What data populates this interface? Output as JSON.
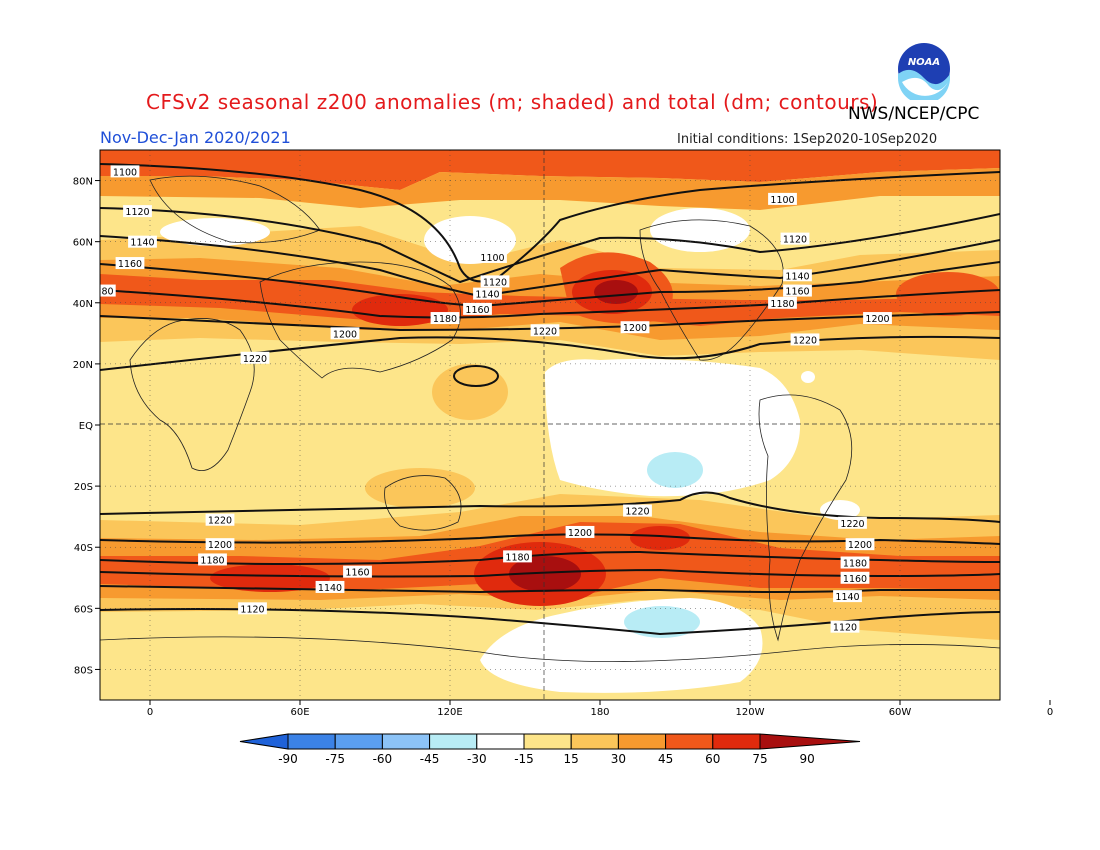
{
  "title": "CFSv2 seasonal z200 anomalies (m; shaded) and total (dm; contours)",
  "season": "Nov-Dec-Jan 2020/2021",
  "initial_conditions": "Initial conditions: 1Sep2020-10Sep2020",
  "agency": "NWS/NCEP/CPC",
  "logo_text": "NOAA",
  "colors": {
    "neg90": "#1f62d9",
    "neg75": "#3b82e6",
    "neg60": "#5b9ff0",
    "neg45": "#8cc3f7",
    "neg30": "#b8ecf5",
    "neutral": "#ffffff",
    "pos15": "#fde58a",
    "pos30": "#fbc65a",
    "pos45": "#f79a2f",
    "pos60": "#f0581a",
    "pos75": "#e02a0d",
    "pos90": "#a80f0f",
    "contour": "#111111"
  },
  "map": {
    "lat_labels": [
      "80N",
      "60N",
      "40N",
      "20N",
      "EQ",
      "20S",
      "40S",
      "60S",
      "80S"
    ],
    "lon_labels": [
      "0",
      "60E",
      "120E",
      "180",
      "120W",
      "60W",
      "0"
    ],
    "contour_labels": [
      {
        "text": "1100",
        "lon": -10,
        "lat": 83
      },
      {
        "text": "1120",
        "lon": -5,
        "lat": 70
      },
      {
        "text": "1140",
        "lon": -3,
        "lat": 60
      },
      {
        "text": "1160",
        "lon": -8,
        "lat": 53
      },
      {
        "text": "80",
        "lon": -17,
        "lat": 44
      },
      {
        "text": "1200",
        "lon": 78,
        "lat": 30
      },
      {
        "text": "1220",
        "lon": 42,
        "lat": 22
      },
      {
        "text": "1100",
        "lon": 137,
        "lat": 55
      },
      {
        "text": "1120",
        "lon": 138,
        "lat": 47
      },
      {
        "text": "1140",
        "lon": 135,
        "lat": 43
      },
      {
        "text": "1160",
        "lon": 131,
        "lat": 38
      },
      {
        "text": "1180",
        "lon": 118,
        "lat": 35
      },
      {
        "text": "1220",
        "lon": 158,
        "lat": 31
      },
      {
        "text": "1200",
        "lon": 194,
        "lat": 32
      },
      {
        "text": "1100",
        "lon": 253,
        "lat": 74
      },
      {
        "text": "1120",
        "lon": 258,
        "lat": 61
      },
      {
        "text": "1140",
        "lon": 259,
        "lat": 49
      },
      {
        "text": "1160",
        "lon": 259,
        "lat": 44
      },
      {
        "text": "1180",
        "lon": 253,
        "lat": 40
      },
      {
        "text": "1200",
        "lon": 291,
        "lat": 35
      },
      {
        "text": "1220",
        "lon": 262,
        "lat": 28
      },
      {
        "text": "1220",
        "lon": 28,
        "lat": -31
      },
      {
        "text": "1200",
        "lon": 28,
        "lat": -39
      },
      {
        "text": "1180",
        "lon": 25,
        "lat": -44
      },
      {
        "text": "1160",
        "lon": 83,
        "lat": -48
      },
      {
        "text": "1140",
        "lon": 72,
        "lat": -53
      },
      {
        "text": "1120",
        "lon": 41,
        "lat": -60
      },
      {
        "text": "1220",
        "lon": 195,
        "lat": -28
      },
      {
        "text": "1200",
        "lon": 172,
        "lat": -35
      },
      {
        "text": "1180",
        "lon": 147,
        "lat": -43
      },
      {
        "text": "1220",
        "lon": 281,
        "lat": -32
      },
      {
        "text": "1200",
        "lon": 284,
        "lat": -39
      },
      {
        "text": "1180",
        "lon": 282,
        "lat": -45
      },
      {
        "text": "1160",
        "lon": 282,
        "lat": -50
      },
      {
        "text": "1140",
        "lon": 279,
        "lat": -56
      },
      {
        "text": "1120",
        "lon": 278,
        "lat": -66
      }
    ]
  },
  "colorbar": {
    "labels": [
      "-90",
      "-75",
      "-60",
      "-45",
      "-30",
      "-15",
      "15",
      "30",
      "45",
      "60",
      "75",
      "90"
    ]
  }
}
